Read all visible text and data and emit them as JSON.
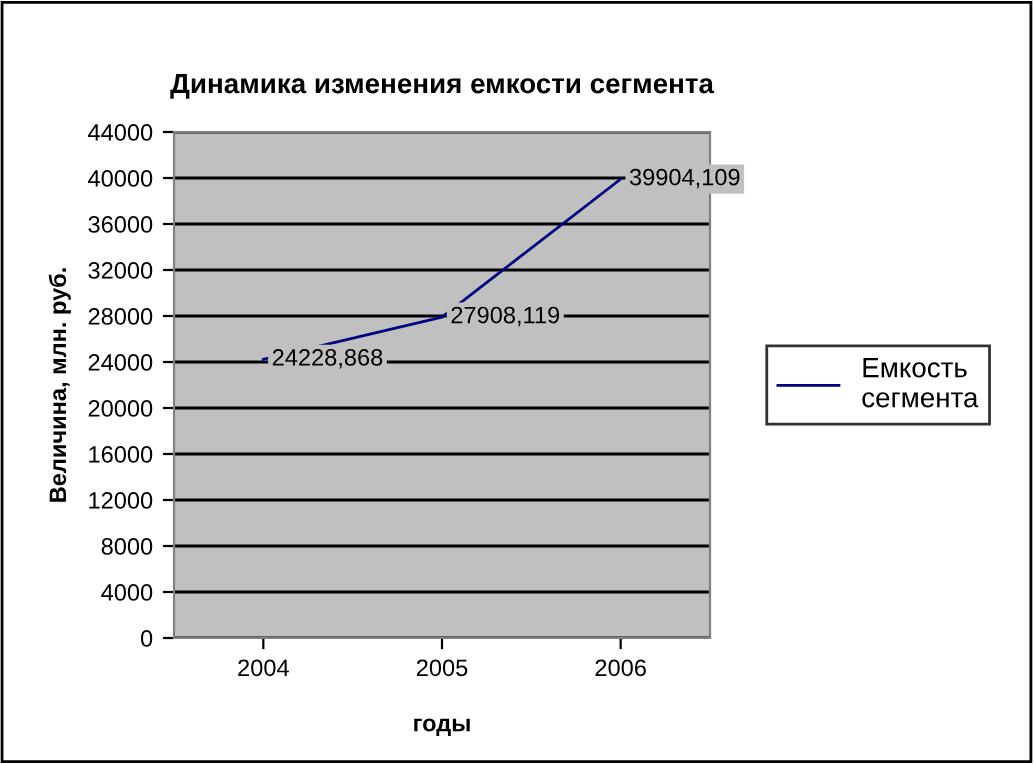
{
  "chart_data": {
    "type": "line",
    "title": "Динамика изменения емкости сегмента",
    "xlabel": "годы",
    "ylabel": "Величина, млн. руб.",
    "categories": [
      "2004",
      "2005",
      "2006"
    ],
    "series": [
      {
        "name": "Емкость\nсегмента",
        "color": "#000080",
        "values": [
          24228.868,
          27908.119,
          39904.109
        ],
        "value_labels": [
          "24228,868",
          "27908,119",
          "39904,109"
        ]
      }
    ],
    "ylim": [
      0,
      44000
    ],
    "yticks": [
      0,
      4000,
      8000,
      12000,
      16000,
      20000,
      24000,
      28000,
      32000,
      36000,
      40000,
      44000
    ],
    "grid": "y",
    "legend": "right",
    "marker": "none",
    "line_style": "solid"
  }
}
